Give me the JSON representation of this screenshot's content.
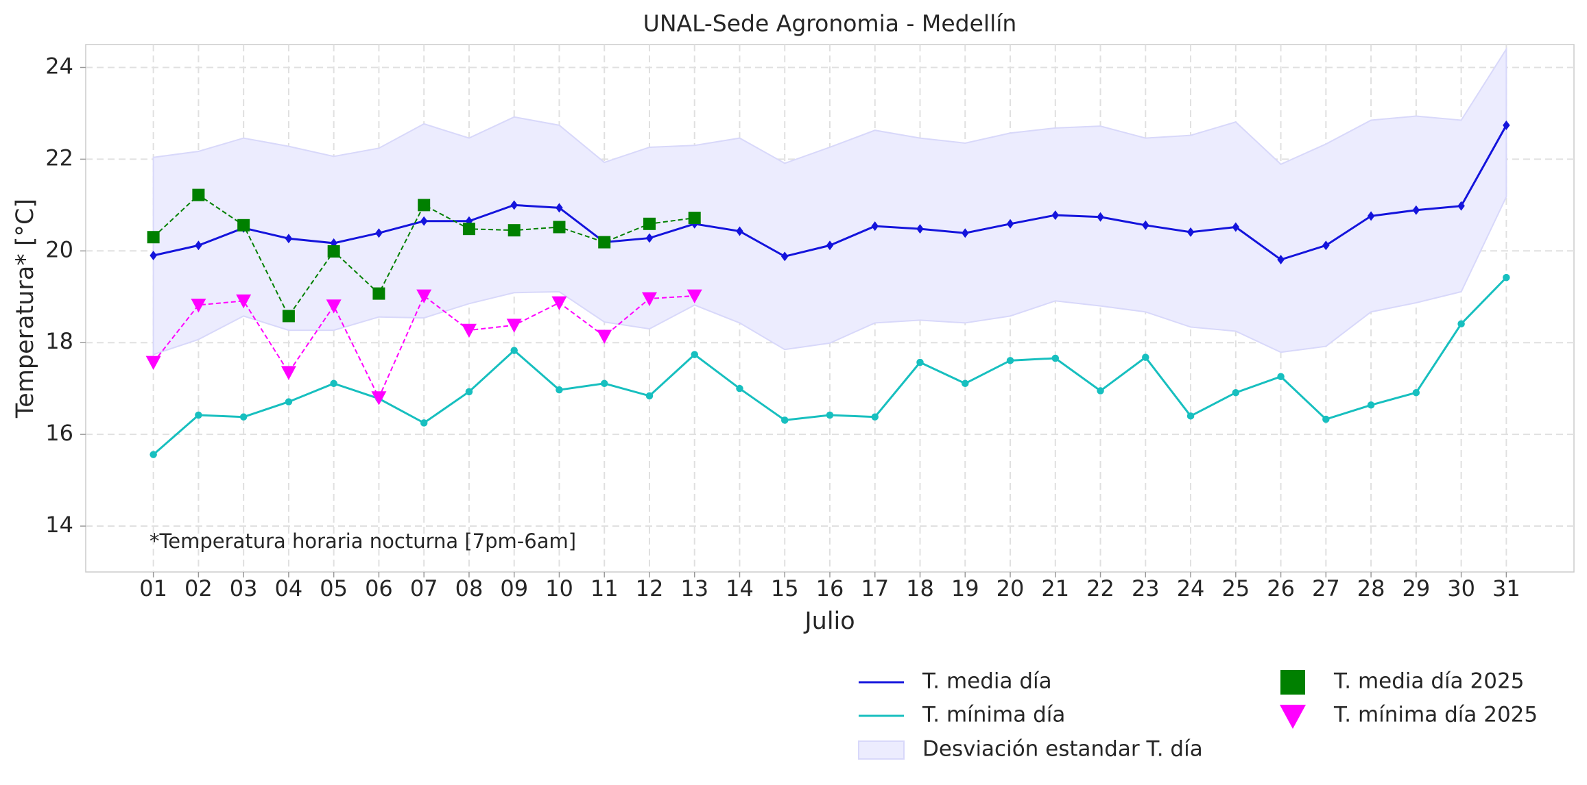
{
  "chart_data": {
    "type": "line",
    "title": "UNAL-Sede Agronomia - Medellín",
    "xlabel": "Julio",
    "ylabel": "Temperatura* [°C]",
    "annotation": "*Temperatura horaria nocturna [7pm-6am]",
    "categories": [
      "01",
      "02",
      "03",
      "04",
      "05",
      "06",
      "07",
      "08",
      "09",
      "10",
      "11",
      "12",
      "13",
      "14",
      "15",
      "16",
      "17",
      "18",
      "19",
      "20",
      "21",
      "22",
      "23",
      "24",
      "25",
      "26",
      "27",
      "28",
      "29",
      "30",
      "31"
    ],
    "ylim": [
      13,
      24.5
    ],
    "yticks": [
      14,
      16,
      18,
      20,
      22,
      24
    ],
    "grid": true,
    "band": {
      "name": "Desviación estandar T. día",
      "color": "#ececfe",
      "lower": [
        17.74,
        18.07,
        18.58,
        18.27,
        18.27,
        18.56,
        18.54,
        18.85,
        19.09,
        19.11,
        18.45,
        18.3,
        18.82,
        18.43,
        17.85,
        17.99,
        18.43,
        18.49,
        18.43,
        18.58,
        18.91,
        18.8,
        18.67,
        18.34,
        18.25,
        17.79,
        17.92,
        18.67,
        18.87,
        19.11,
        21.18
      ],
      "upper": [
        22.04,
        22.17,
        22.46,
        22.28,
        22.06,
        22.24,
        22.77,
        22.46,
        22.92,
        22.74,
        21.93,
        22.26,
        22.3,
        22.46,
        21.91,
        22.26,
        22.63,
        22.46,
        22.35,
        22.57,
        22.68,
        22.72,
        22.46,
        22.52,
        22.81,
        21.89,
        22.33,
        22.85,
        22.94,
        22.85,
        24.4
      ]
    },
    "series": [
      {
        "name": "T. media día",
        "color": "#1414dc",
        "marker": "diamond",
        "linestyle": "solid",
        "values": [
          19.9,
          20.12,
          20.5,
          20.27,
          20.17,
          20.39,
          20.65,
          20.65,
          21.0,
          20.94,
          20.19,
          20.28,
          20.59,
          20.43,
          19.88,
          20.12,
          20.54,
          20.48,
          20.39,
          20.59,
          20.78,
          20.74,
          20.56,
          20.41,
          20.52,
          19.81,
          20.12,
          20.76,
          20.89,
          20.98,
          22.74
        ]
      },
      {
        "name": "T. mínima día",
        "color": "#17bfbf",
        "marker": "circle",
        "linestyle": "solid",
        "values": [
          15.56,
          16.42,
          16.38,
          16.71,
          17.11,
          16.78,
          16.25,
          16.93,
          17.83,
          16.97,
          17.11,
          16.84,
          17.74,
          17.0,
          16.31,
          16.42,
          16.38,
          17.57,
          17.11,
          17.61,
          17.66,
          16.95,
          17.68,
          16.4,
          16.91,
          17.26,
          16.33,
          16.64,
          16.91,
          18.41,
          19.42
        ]
      },
      {
        "name": "T. media día 2025",
        "color": "#008000",
        "marker": "square",
        "linestyle": "dashed",
        "values": [
          20.3,
          21.22,
          20.56,
          18.58,
          19.99,
          19.07,
          21.0,
          20.48,
          20.45,
          20.52,
          20.19,
          20.59,
          20.72,
          null,
          null,
          null,
          null,
          null,
          null,
          null,
          null,
          null,
          null,
          null,
          null,
          null,
          null,
          null,
          null,
          null,
          null
        ]
      },
      {
        "name": "T. mínima día 2025",
        "color": "#ff00ff",
        "marker": "triangle",
        "linestyle": "dashed",
        "values": [
          17.57,
          18.82,
          18.91,
          17.35,
          18.8,
          16.8,
          19.02,
          18.27,
          18.38,
          18.87,
          18.14,
          18.96,
          19.02,
          null,
          null,
          null,
          null,
          null,
          null,
          null,
          null,
          null,
          null,
          null,
          null,
          null,
          null,
          null,
          null,
          null,
          null
        ]
      }
    ]
  }
}
